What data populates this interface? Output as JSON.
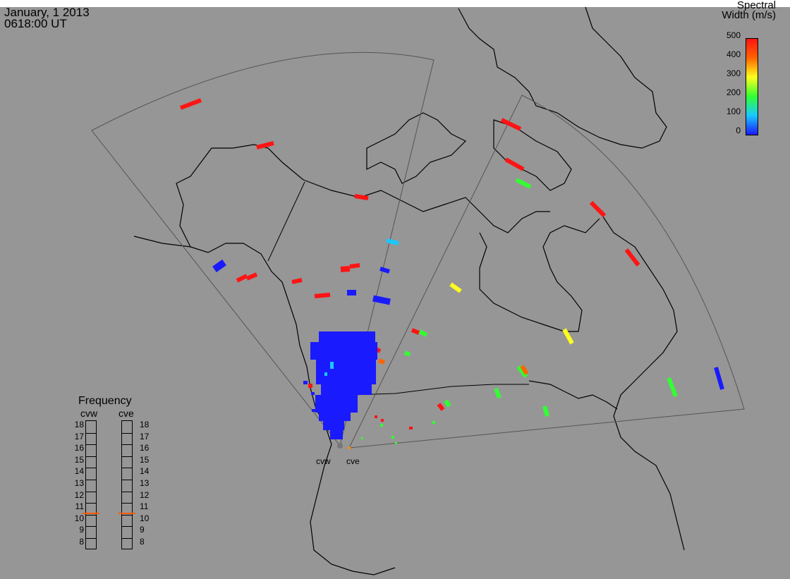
{
  "header": {
    "date": "January, 1 2013",
    "time": "0618:00 UT"
  },
  "colorbar": {
    "title_line1": "Spectral",
    "title_line2": "Width (m/s)",
    "ticks": [
      "500",
      "400",
      "300",
      "200",
      "100",
      "0"
    ]
  },
  "frequency_panel": {
    "title": "Frequency",
    "radars": [
      "cvw",
      "cve"
    ],
    "scale": [
      "18",
      "17",
      "16",
      "15",
      "14",
      "13",
      "12",
      "11",
      "10",
      "9",
      "8"
    ],
    "cvw_mhz": 10.6,
    "cve_mhz": 10.6,
    "marker_color": "#ff5a00"
  },
  "map_labels": {
    "radar_west": "cvw",
    "radar_east": "cve"
  },
  "colors": {
    "background": "#969696",
    "blue": "#1a1aff",
    "cyan": "#19c8ff",
    "green": "#32ff32",
    "yellow": "#ffff1e",
    "orange": "#ff6400",
    "red": "#ff1414"
  }
}
